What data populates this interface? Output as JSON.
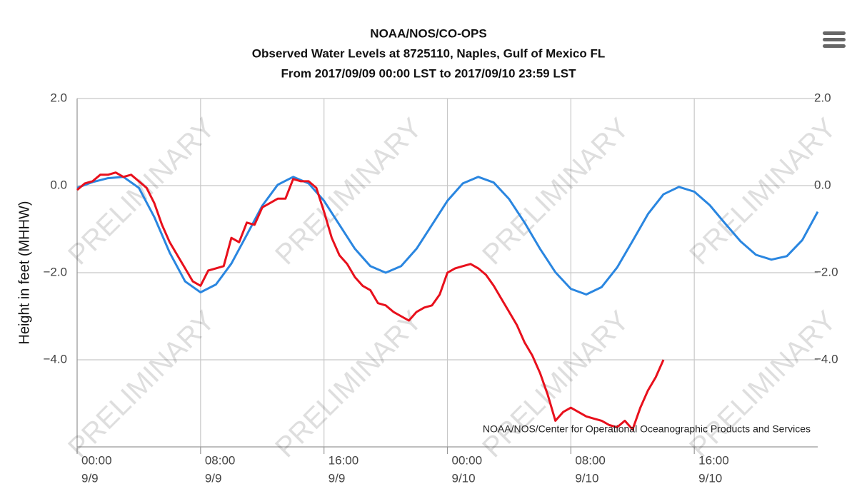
{
  "chart_data": {
    "type": "line",
    "title": "NOAA/NOS/CO-OPS",
    "subtitle": [
      "Observed Water Levels at 8725110, Naples, Gulf of Mexico FL",
      "From 2017/09/09 00:00 LST to 2017/09/10 23:59 LST"
    ],
    "y_label": "Height in feet (MHHW)",
    "credits": "NOAA/NOS/Center for Operational Oceanographic Products and Services",
    "watermark": "PRELIMINARY",
    "xlim": [
      0,
      48
    ],
    "xticks": [
      {
        "value": 0,
        "label": [
          "00:00",
          "9/9"
        ]
      },
      {
        "value": 8,
        "label": [
          "08:00",
          "9/9"
        ]
      },
      {
        "value": 16,
        "label": [
          "16:00",
          "9/9"
        ]
      },
      {
        "value": 24,
        "label": [
          "00:00",
          "9/10"
        ]
      },
      {
        "value": 32,
        "label": [
          "08:00",
          "9/10"
        ]
      },
      {
        "value": 40,
        "label": [
          "16:00",
          "9/10"
        ]
      }
    ],
    "ylim": [
      -6,
      2
    ],
    "yticks": [
      {
        "value": 2,
        "label": "2.0"
      },
      {
        "value": 0,
        "label": "0.0"
      },
      {
        "value": -2,
        "label": "−2.0"
      },
      {
        "value": -4,
        "label": "−4.0"
      }
    ],
    "grid": true,
    "series": [
      {
        "color": "#2a86e0",
        "x": [
          0,
          1,
          2,
          3,
          4,
          5,
          6,
          7,
          8,
          9,
          10,
          11,
          12,
          13,
          14,
          15,
          16,
          17,
          18,
          19,
          20,
          21,
          22,
          23,
          24,
          25,
          26,
          27,
          28,
          29,
          30,
          31,
          32,
          33,
          34,
          35,
          36,
          37,
          38,
          39,
          40,
          41,
          42,
          43,
          44,
          45,
          46,
          47,
          48
        ],
        "values": [
          -0.05,
          0.08,
          0.17,
          0.2,
          -0.05,
          -0.72,
          -1.54,
          -2.2,
          -2.45,
          -2.27,
          -1.79,
          -1.13,
          -0.46,
          0.02,
          0.2,
          0.05,
          -0.35,
          -0.9,
          -1.45,
          -1.85,
          -2.0,
          -1.85,
          -1.45,
          -0.9,
          -0.35,
          0.05,
          0.2,
          0.07,
          -0.31,
          -0.85,
          -1.45,
          -1.99,
          -2.37,
          -2.5,
          -2.33,
          -1.88,
          -1.27,
          -0.65,
          -0.2,
          -0.03,
          -0.14,
          -0.45,
          -0.87,
          -1.28,
          -1.59,
          -1.7,
          -1.62,
          -1.25,
          -0.6
        ]
      },
      {
        "color": "#e8101c",
        "x": [
          0,
          0.5,
          1,
          1.5,
          2,
          2.5,
          3,
          3.5,
          4,
          4.5,
          5,
          5.5,
          6,
          6.5,
          7,
          7.5,
          8,
          8.5,
          9,
          9.5,
          10,
          10.5,
          11,
          11.5,
          12,
          12.5,
          13,
          13.5,
          14,
          14.5,
          15,
          15.5,
          16,
          16.5,
          17,
          17.5,
          18,
          18.5,
          19,
          19.5,
          20,
          20.5,
          21,
          21.5,
          22,
          22.5,
          23,
          23.5,
          24,
          24.5,
          25,
          25.5,
          26,
          26.5,
          27,
          27.5,
          28,
          28.5,
          29,
          29.5,
          30,
          30.5,
          31,
          31.5,
          32,
          32.5,
          33,
          33.5,
          34,
          34.5,
          35,
          35.5,
          36,
          36.5,
          37,
          37.5,
          38
        ],
        "values": [
          -0.1,
          0.05,
          0.1,
          0.25,
          0.25,
          0.3,
          0.2,
          0.25,
          0.1,
          -0.05,
          -0.4,
          -0.9,
          -1.3,
          -1.6,
          -1.9,
          -2.2,
          -2.3,
          -1.95,
          -1.9,
          -1.85,
          -1.2,
          -1.3,
          -0.85,
          -0.9,
          -0.5,
          -0.4,
          -0.3,
          -0.3,
          0.15,
          0.1,
          0.1,
          -0.05,
          -0.6,
          -1.2,
          -1.6,
          -1.8,
          -2.1,
          -2.3,
          -2.4,
          -2.7,
          -2.75,
          -2.9,
          -3.0,
          -3.1,
          -2.9,
          -2.8,
          -2.75,
          -2.5,
          -2.0,
          -1.9,
          -1.85,
          -1.8,
          -1.9,
          -2.05,
          -2.3,
          -2.6,
          -2.9,
          -3.2,
          -3.6,
          -3.9,
          -4.3,
          -4.8,
          -5.4,
          -5.2,
          -5.1,
          -5.2,
          -5.3,
          -5.35,
          -5.4,
          -5.5,
          -5.55,
          -5.4,
          -5.6,
          -5.1,
          -4.7,
          -4.4,
          -4.0
        ]
      }
    ]
  }
}
